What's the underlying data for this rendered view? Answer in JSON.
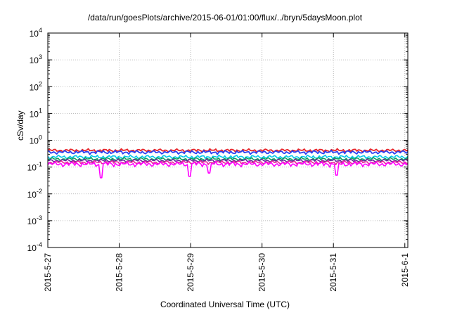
{
  "chart_data": {
    "type": "line",
    "title": "/data/run/goesPlots/archive/2015-06-01/01:00/flux/../bryn/5daysMoon.plot",
    "xlabel": "Coordinated Universal Time (UTC)",
    "ylabel": "cSv/day",
    "yscale": "log",
    "ylim": [
      0.0001,
      10000
    ],
    "y_ticks": [
      {
        "base": "10",
        "exp": "-4"
      },
      {
        "base": "10",
        "exp": "-3"
      },
      {
        "base": "10",
        "exp": "-2"
      },
      {
        "base": "10",
        "exp": "-1"
      },
      {
        "base": "10",
        "exp": "0"
      },
      {
        "base": "10",
        "exp": "1"
      },
      {
        "base": "10",
        "exp": "2"
      },
      {
        "base": "10",
        "exp": "3"
      },
      {
        "base": "10",
        "exp": "4"
      }
    ],
    "xlim": [
      "2015-05-27",
      "2015-06-01 01:00"
    ],
    "x_ticks": [
      "2015-5-27",
      "2015-5-28",
      "2015-5-29",
      "2015-5-30",
      "2015-5-31",
      "2015-6-1"
    ],
    "grid": true,
    "legend": "none",
    "series": [
      {
        "color": "#e8252a",
        "base": 0.42,
        "spread": 0.06
      },
      {
        "color": "#2b3ff0",
        "base": 0.36,
        "spread": 0.06
      },
      {
        "color": "#00c8e8",
        "base": 0.24,
        "spread": 0.04
      },
      {
        "color": "#10a060",
        "base": 0.2,
        "spread": 0.03
      },
      {
        "color": "#6a2a9a",
        "base": 0.175,
        "spread": 0.025
      },
      {
        "color": "#e8289a",
        "base": 0.15,
        "spread": 0.025
      },
      {
        "color": "#ff00ff",
        "base": 0.13,
        "spread": 0.03,
        "dips": [
          {
            "x": "2015-05-27 18:00",
            "y": 0.04
          },
          {
            "x": "2015-05-28 23:40",
            "y": 0.045
          },
          {
            "x": "2015-05-29 06:00",
            "y": 0.06
          },
          {
            "x": "2015-05-31 01:00",
            "y": 0.05
          }
        ]
      }
    ]
  }
}
